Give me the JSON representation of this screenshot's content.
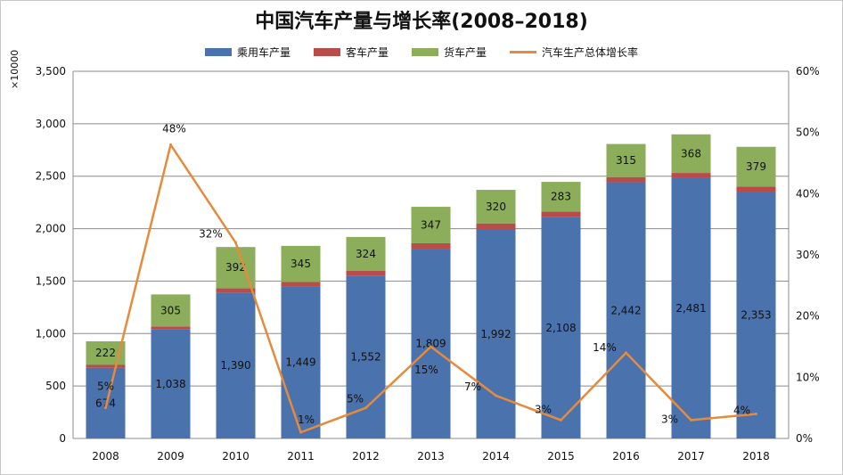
{
  "chart_data": {
    "type": "bar",
    "title": "中国汽车产量与增长率(2008–2018)",
    "y_unit_label": "×10000",
    "categories": [
      "2008",
      "2009",
      "2010",
      "2011",
      "2012",
      "2013",
      "2014",
      "2015",
      "2016",
      "2017",
      "2018"
    ],
    "series": [
      {
        "name": "乘用车产量",
        "kind": "stacked-bar",
        "color": "#4a72ad",
        "values": [
          674,
          1038,
          1390,
          1449,
          1552,
          1809,
          1992,
          2108,
          2442,
          2481,
          2353
        ],
        "labels": [
          "674",
          "1,038",
          "1,390",
          "1,449",
          "1,552",
          "1,809",
          "1,992",
          "2,108",
          "2,442",
          "2,481",
          "2,353"
        ]
      },
      {
        "name": "客车产量",
        "kind": "stacked-bar",
        "color": "#b84c4a",
        "values": [
          30,
          30,
          43,
          42,
          45,
          52,
          58,
          55,
          50,
          50,
          48
        ]
      },
      {
        "name": "货车产量",
        "kind": "stacked-bar",
        "color": "#8cad5a",
        "values": [
          222,
          305,
          392,
          345,
          324,
          347,
          320,
          283,
          315,
          368,
          379
        ],
        "labels": [
          "222",
          "305",
          "392",
          "345",
          "324",
          "347",
          "320",
          "283",
          "315",
          "368",
          "379"
        ]
      },
      {
        "name": "汽车生产总体增长率",
        "kind": "line",
        "axis": "right",
        "color": "#e68a3c",
        "values": [
          5,
          48,
          32,
          1,
          5,
          15,
          7,
          3,
          14,
          3,
          4
        ],
        "labels": [
          "5%",
          "48%",
          "32%",
          "1%",
          "5%",
          "15%",
          "7%",
          "3%",
          "14%",
          "3%",
          "4%"
        ]
      }
    ],
    "y_left": {
      "min": 0,
      "max": 3500,
      "step": 500,
      "ticks": [
        "0",
        "500",
        "1,000",
        "1,500",
        "2,000",
        "2,500",
        "3,000",
        "3,500"
      ]
    },
    "y_right": {
      "min": 0,
      "max": 60,
      "step": 10,
      "ticks": [
        "0%",
        "10%",
        "20%",
        "30%",
        "40%",
        "50%",
        "60%"
      ]
    },
    "grid": true,
    "legend_position": "top"
  }
}
